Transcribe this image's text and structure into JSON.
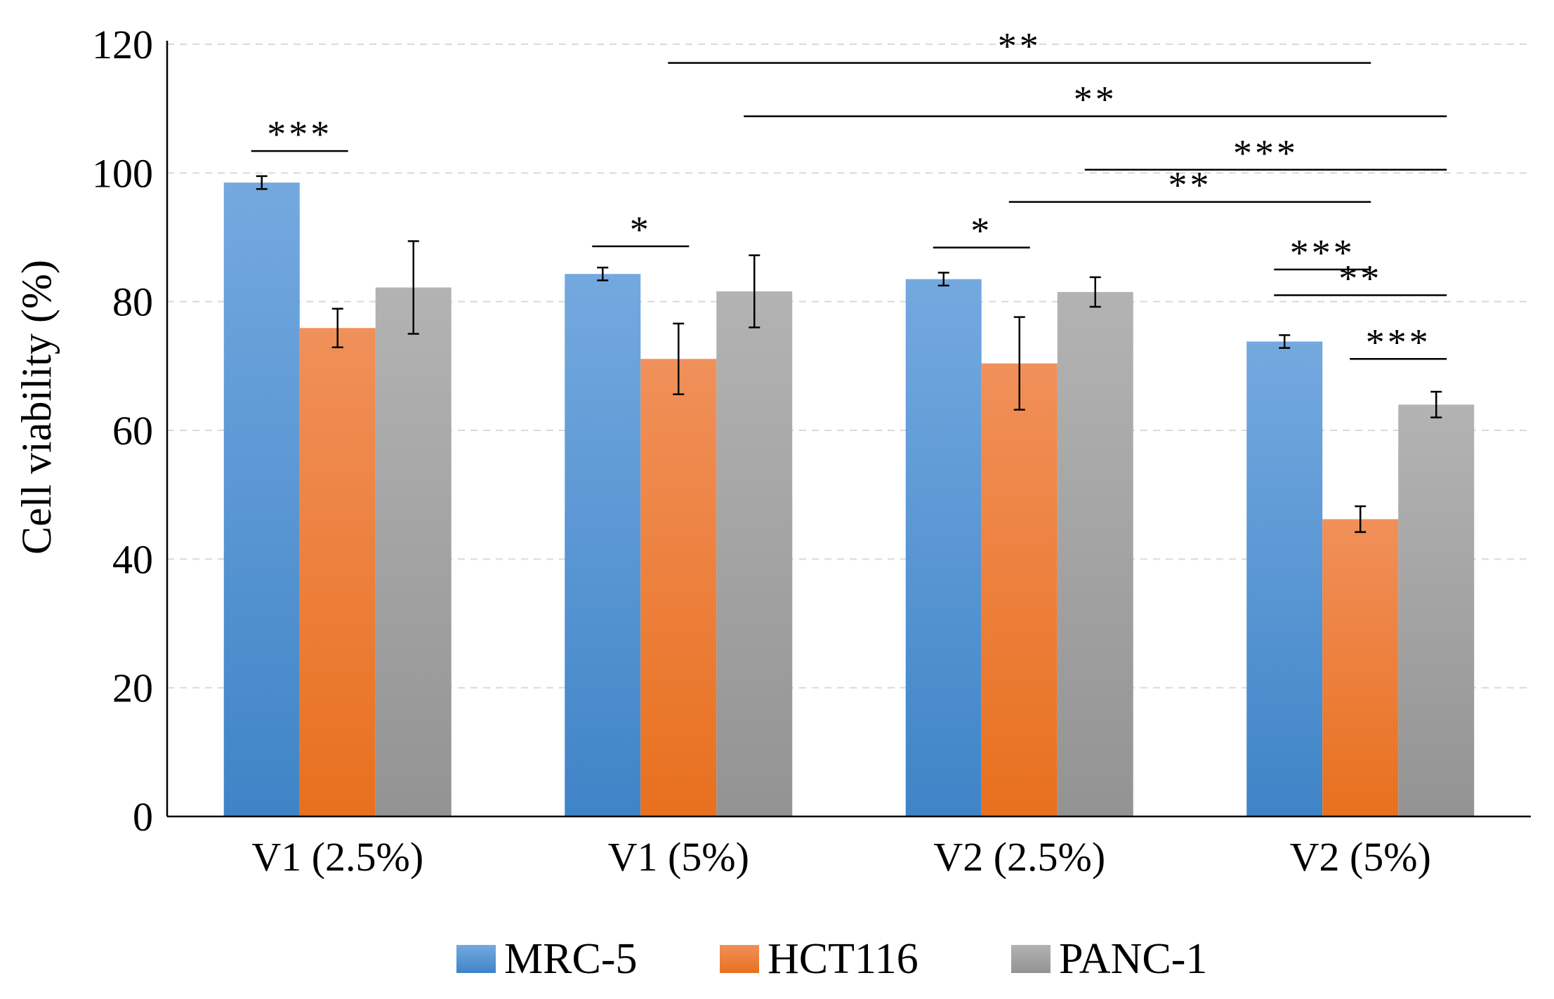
{
  "chart_data": {
    "type": "bar",
    "title": "",
    "xlabel": "",
    "ylabel": "Cell viability (%)",
    "ylim": [
      0,
      120
    ],
    "yticks": [
      0,
      20,
      40,
      60,
      80,
      100,
      120
    ],
    "grid": true,
    "legend_position": "bottom",
    "categories": [
      "V1 (2.5%)",
      "V1 (5%)",
      "V2 (2.5%)",
      "V2 (5%)"
    ],
    "series": [
      {
        "name": "MRC-5",
        "color": "#5B9BD5",
        "values": [
          98.5,
          84.3,
          83.5,
          73.8
        ],
        "errors": [
          1.0,
          1.0,
          1.0,
          1.0
        ]
      },
      {
        "name": "HCT116",
        "color": "#ED7D31",
        "values": [
          75.9,
          71.1,
          70.4,
          46.2
        ],
        "errors": [
          3.0,
          5.5,
          7.2,
          2.0
        ]
      },
      {
        "name": "PANC-1",
        "color": "#A5A5A5",
        "values": [
          82.2,
          81.6,
          81.5,
          64.0
        ],
        "errors": [
          7.2,
          5.6,
          2.3,
          2.0
        ]
      }
    ],
    "annotations": [
      {
        "label": "***",
        "from": [
          0,
          0
        ],
        "to": [
          0,
          1
        ],
        "y": 103.4
      },
      {
        "label": "*",
        "from": [
          1,
          0
        ],
        "to": [
          1,
          1
        ],
        "y": 88.6
      },
      {
        "label": "*",
        "from": [
          2,
          0
        ],
        "to": [
          2,
          1
        ],
        "y": 88.4
      },
      {
        "label": "**",
        "from": [
          1,
          1
        ],
        "to": [
          3,
          1
        ],
        "y": 117.1
      },
      {
        "label": "**",
        "from": [
          1,
          2
        ],
        "to": [
          3,
          2
        ],
        "y": 108.8
      },
      {
        "label": "***",
        "from": [
          2,
          2
        ],
        "to": [
          3,
          2
        ],
        "y": 100.5
      },
      {
        "label": "**",
        "from": [
          2,
          1
        ],
        "to": [
          3,
          1
        ],
        "y": 95.5
      },
      {
        "label": "***",
        "from": [
          3,
          0
        ],
        "to": [
          3,
          1
        ],
        "y": 85.0
      },
      {
        "label": "**",
        "from": [
          3,
          0
        ],
        "to": [
          3,
          2
        ],
        "y": 81.0
      },
      {
        "label": "***",
        "from": [
          3,
          1
        ],
        "to": [
          3,
          2
        ],
        "y": 71.1
      }
    ]
  }
}
